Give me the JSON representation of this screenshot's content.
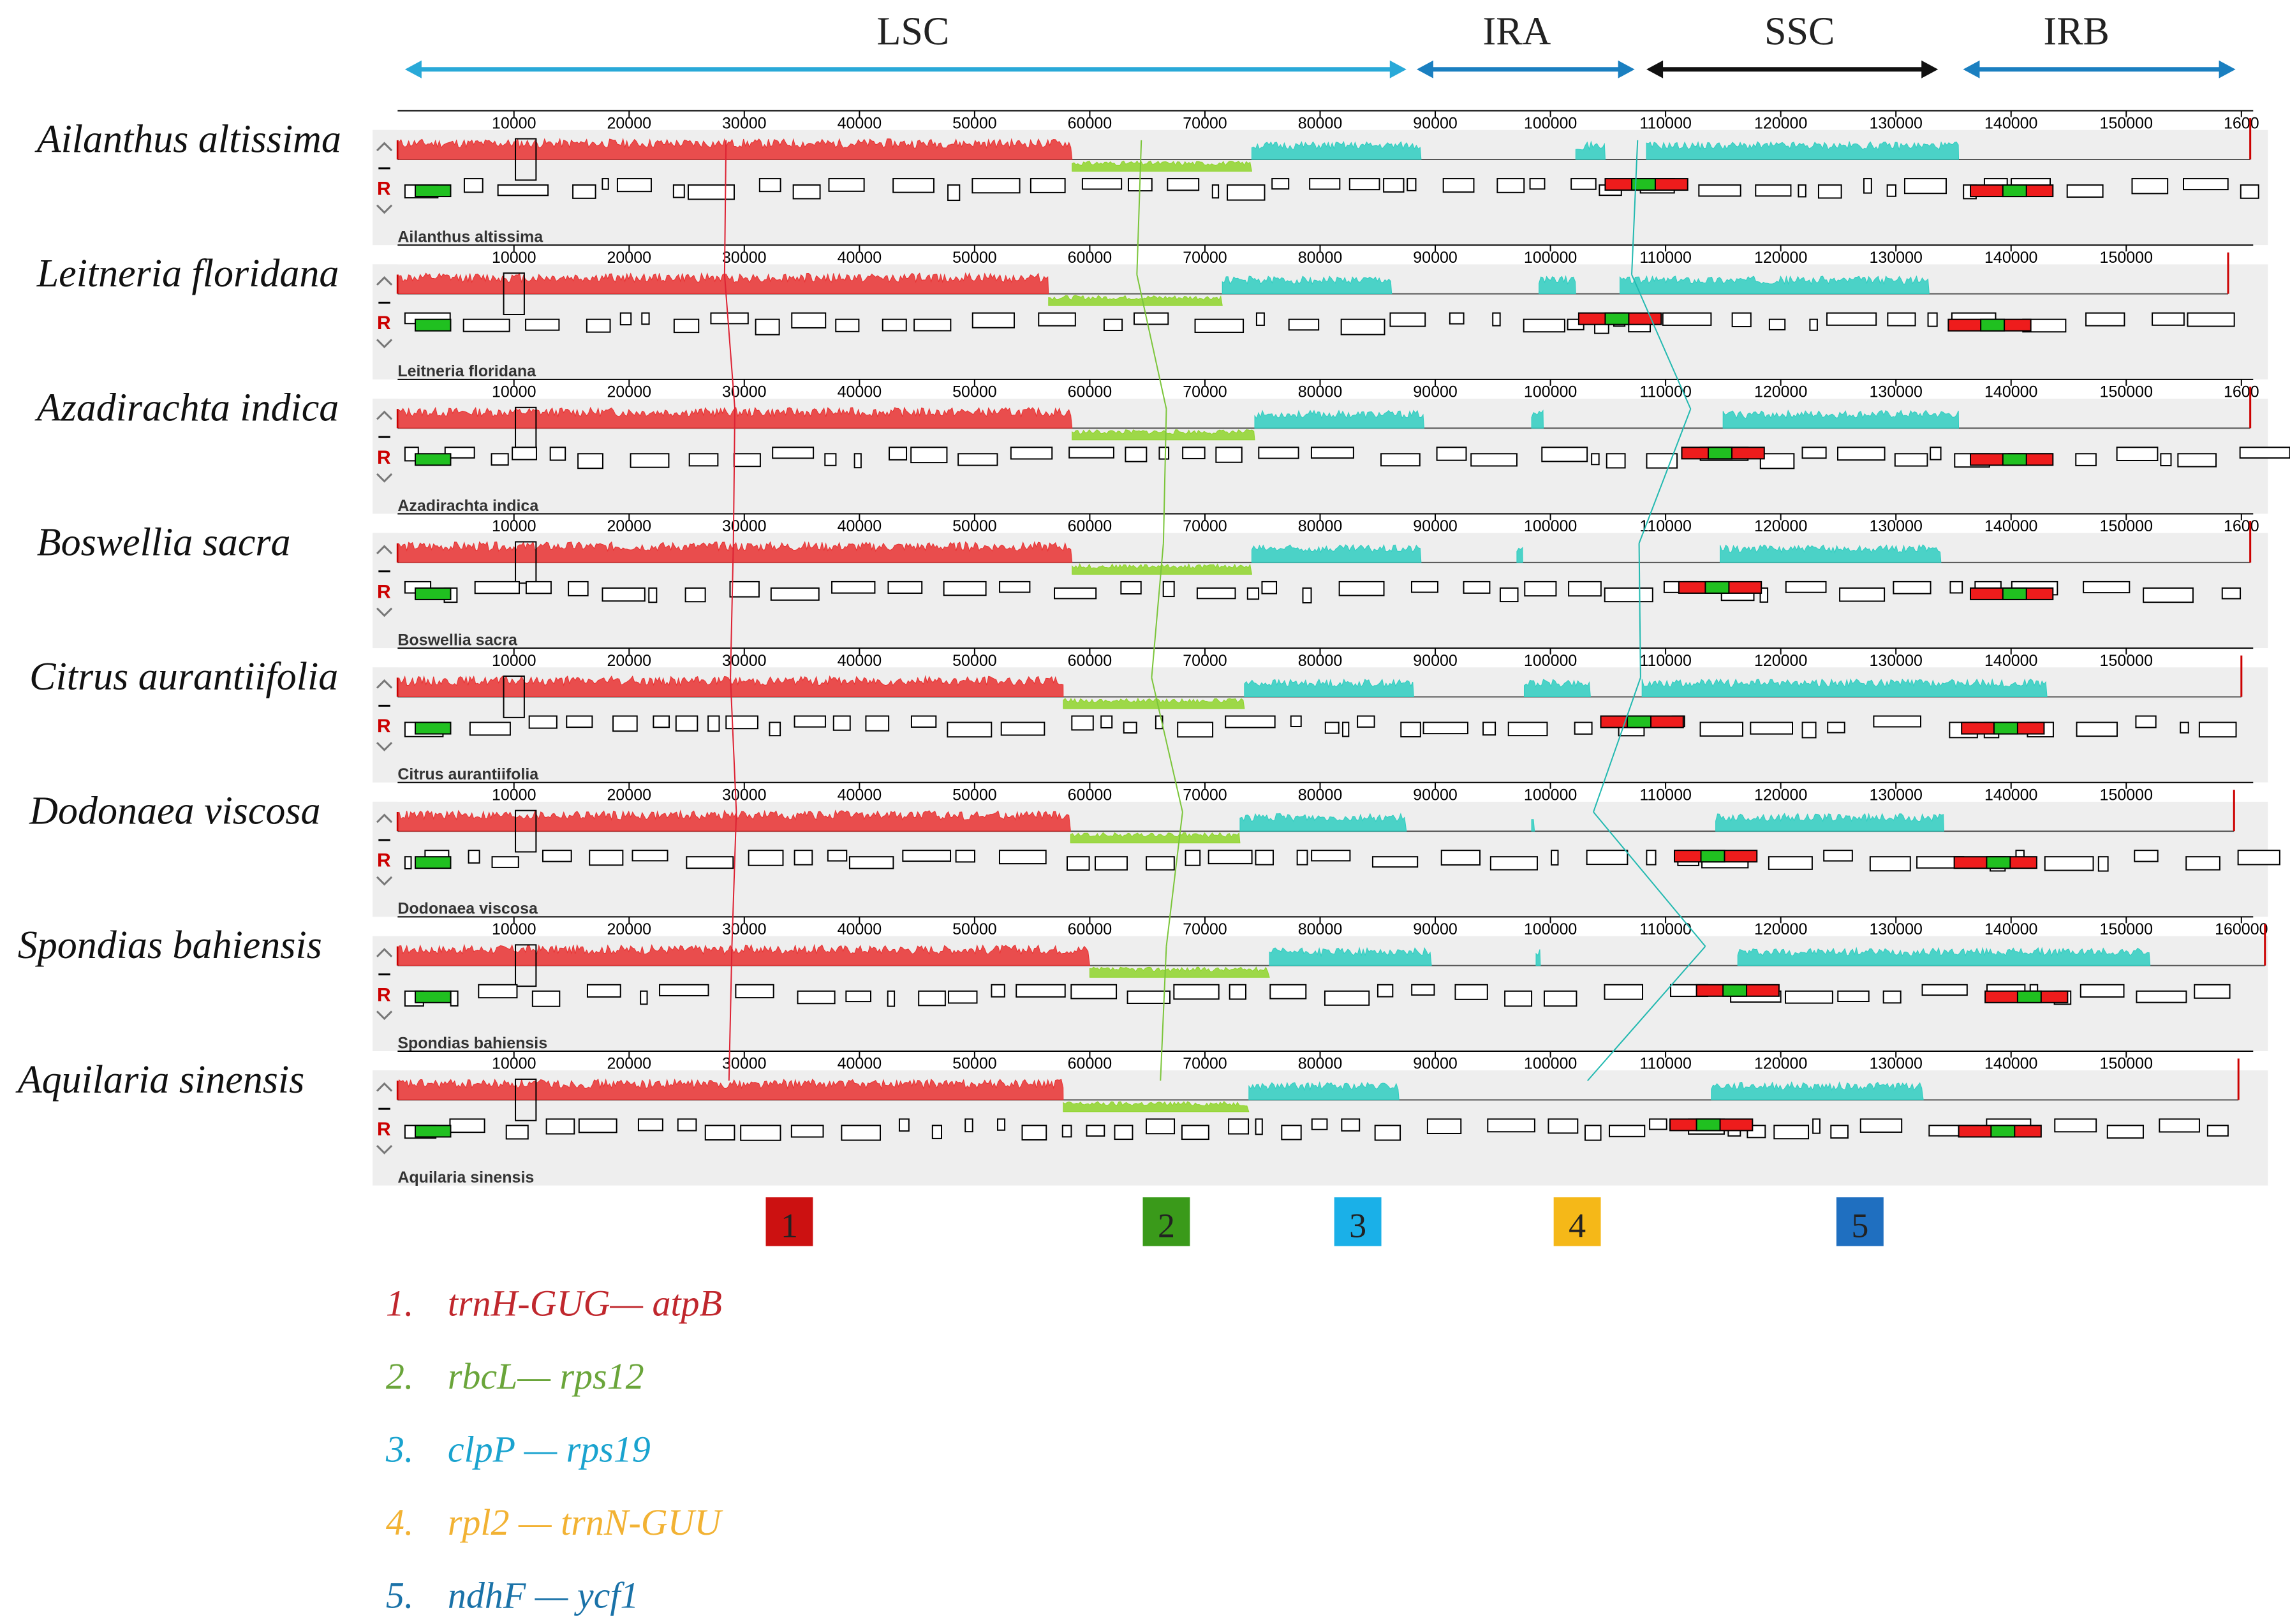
{
  "regions": [
    {
      "label": "LSC",
      "color": "#29a9d8"
    },
    {
      "label": "IRA",
      "color": "#1a7fc0"
    },
    {
      "label": "SSC",
      "color": "#111111"
    },
    {
      "label": "IRB",
      "color": "#1a7fc0"
    }
  ],
  "track_letter": "R",
  "species": [
    {
      "name": "Ailanthus altissima",
      "caption": "Ailanthus altissima",
      "ticks": [
        "10000",
        "20000",
        "30000",
        "40000",
        "50000",
        "60000",
        "70000",
        "80000",
        "90000",
        "100000",
        "110000",
        "120000",
        "130000",
        "140000",
        "150000",
        "1600"
      ]
    },
    {
      "name": "Leitneria floridana",
      "caption": "Leitneria floridana",
      "ticks": [
        "10000",
        "20000",
        "30000",
        "40000",
        "50000",
        "60000",
        "70000",
        "80000",
        "90000",
        "100000",
        "110000",
        "120000",
        "130000",
        "140000",
        "150000"
      ]
    },
    {
      "name": "Azadirachta indica",
      "caption": "Azadirachta indica",
      "ticks": [
        "10000",
        "20000",
        "30000",
        "40000",
        "50000",
        "60000",
        "70000",
        "80000",
        "90000",
        "100000",
        "110000",
        "120000",
        "130000",
        "140000",
        "150000",
        "1600"
      ]
    },
    {
      "name": "Boswellia sacra",
      "caption": "Boswellia sacra",
      "ticks": [
        "10000",
        "20000",
        "30000",
        "40000",
        "50000",
        "60000",
        "70000",
        "80000",
        "90000",
        "100000",
        "110000",
        "120000",
        "130000",
        "140000",
        "150000",
        "1600"
      ]
    },
    {
      "name": "Citrus aurantiifolia",
      "caption": "Citrus aurantiifolia",
      "ticks": [
        "10000",
        "20000",
        "30000",
        "40000",
        "50000",
        "60000",
        "70000",
        "80000",
        "90000",
        "100000",
        "110000",
        "120000",
        "130000",
        "140000",
        "150000"
      ]
    },
    {
      "name": "Dodonaea viscosa",
      "caption": "Dodonaea viscosa",
      "ticks": [
        "10000",
        "20000",
        "30000",
        "40000",
        "50000",
        "60000",
        "70000",
        "80000",
        "90000",
        "100000",
        "110000",
        "120000",
        "130000",
        "140000",
        "150000"
      ]
    },
    {
      "name": "Spondias bahiensis",
      "caption": "Spondias bahiensis",
      "ticks": [
        "10000",
        "20000",
        "30000",
        "40000",
        "50000",
        "60000",
        "70000",
        "80000",
        "90000",
        "100000",
        "110000",
        "120000",
        "130000",
        "140000",
        "150000",
        "160000"
      ]
    },
    {
      "name": "Aquilaria sinensis",
      "caption": "Aquilaria sinensis",
      "ticks": [
        "10000",
        "20000",
        "30000",
        "40000",
        "50000",
        "60000",
        "70000",
        "80000",
        "90000",
        "100000",
        "110000",
        "120000",
        "130000",
        "140000",
        "150000"
      ]
    }
  ],
  "boxes": [
    {
      "label": "1",
      "color": "#cc1111"
    },
    {
      "label": "2",
      "color": "#3a9a1a"
    },
    {
      "label": "3",
      "color": "#1ab0e8"
    },
    {
      "label": "4",
      "color": "#f5b818"
    },
    {
      "label": "5",
      "color": "#1f6fc0"
    }
  ],
  "legend": [
    {
      "num": "1.",
      "text": "trnH-GUG— atpB",
      "color": "#c0272d"
    },
    {
      "num": "2.",
      "text": "rbcL— rps12",
      "color": "#6aa53a"
    },
    {
      "num": "3.",
      "text": "clpP — rps19",
      "color": "#1aa3cf"
    },
    {
      "num": "4.",
      "text": "rpl2 — trnN-GUU",
      "color": "#f2b233"
    },
    {
      "num": "5.",
      "text": "ndhF — ycf1",
      "color": "#1a72a8"
    }
  ],
  "colors": {
    "block_red": "#e83030",
    "block_green": "#8ed42a",
    "block_cyan": "#2ecdc0",
    "panel_bg": "#eeeeee"
  }
}
